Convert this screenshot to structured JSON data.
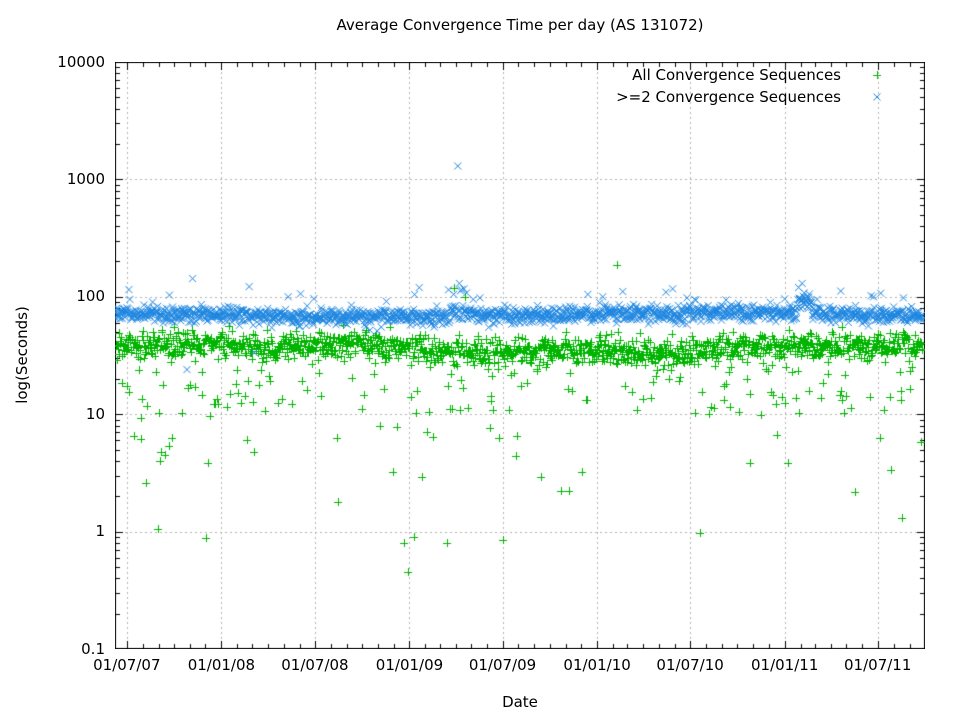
{
  "title": "Average Convergence Time per day (AS 131072)",
  "axes": {
    "x": {
      "label": "Date",
      "range": [
        "2007-06-08",
        "2011-10-01"
      ],
      "ticks": [
        {
          "label": "01/07/07",
          "date": "2007-07-01"
        },
        {
          "label": "01/01/08",
          "date": "2008-01-01"
        },
        {
          "label": "01/07/08",
          "date": "2008-07-01"
        },
        {
          "label": "01/01/09",
          "date": "2009-01-01"
        },
        {
          "label": "01/07/09",
          "date": "2009-07-01"
        },
        {
          "label": "01/01/10",
          "date": "2010-01-01"
        },
        {
          "label": "01/07/10",
          "date": "2010-07-01"
        },
        {
          "label": "01/01/11",
          "date": "2011-01-01"
        },
        {
          "label": "01/07/11",
          "date": "2011-07-01"
        }
      ]
    },
    "y": {
      "label": "log(Seconds)",
      "scale": "log",
      "range": [
        0.1,
        10000
      ],
      "ticks": [
        {
          "label": "10000",
          "value": 10000
        },
        {
          "label": "1000",
          "value": 1000
        },
        {
          "label": "100",
          "value": 100
        },
        {
          "label": "10",
          "value": 10
        },
        {
          "label": "1",
          "value": 1
        },
        {
          "label": "0.1",
          "value": 0.1
        }
      ]
    }
  },
  "legend": {
    "position": "top-right",
    "items": [
      {
        "label": "All Convergence Sequences",
        "marker": "plus-icon",
        "color": "#00b400"
      },
      {
        "label": ">=2 Convergence Sequences",
        "marker": "cross-icon",
        "color": "#1e86e0"
      }
    ]
  },
  "colors": {
    "background": "#ffffff",
    "border": "#000000",
    "grid": "#b4b4b4",
    "text": "#000000",
    "series_all": "#00b400",
    "series_ge2": "#1e86e0"
  },
  "chart_data": {
    "type": "scatter",
    "title": "Average Convergence Time per day (AS 131072)",
    "xlabel": "Date",
    "ylabel": "log(Seconds)",
    "x_unit": "date, one point per day",
    "y_unit": "seconds (log10 scale)",
    "ylim": [
      0.1,
      10000
    ],
    "data_range": [
      "2007-06-10",
      "2011-09-26"
    ],
    "grid": true,
    "seed": 1131072,
    "series": [
      {
        "name": "All Convergence Sequences",
        "marker": "plus",
        "color": "#00b400",
        "typical_seconds": 36,
        "band_seconds": [
          25,
          50
        ],
        "distribution": {
          "core": {
            "log_mean": 1.56,
            "log_sd": 0.06
          },
          "drift": [
            {
              "amp": 0.03,
              "period_days": 230,
              "phase": 0.8
            },
            {
              "amp": 0.015,
              "period_days": 61,
              "phase": 0.0
            }
          ],
          "tails": [
            {
              "name": "very_low",
              "p": 0.006,
              "log_min": -0.35,
              "log_max": 0.4,
              "after_2010_factor": 0.5
            },
            {
              "name": "low",
              "p": 0.03,
              "log_min": 0.45,
              "log_max": 1.0,
              "after_2010_factor": 0.5
            },
            {
              "name": "mid",
              "p": 0.085,
              "log_min": 1.0,
              "log_max": 1.4,
              "after_2010_factor": 1
            },
            {
              "name": "high",
              "p": 0.003,
              "log_min": 1.8,
              "log_max": 1.9,
              "after_2010_factor": 1
            }
          ],
          "events": []
        },
        "outliers": [
          [
            "2010-02-08",
            185
          ],
          [
            "2009-03-29",
            118
          ],
          [
            "2009-04-19",
            100
          ],
          [
            "2008-12-21",
            0.8
          ],
          [
            "2008-12-29",
            0.45
          ],
          [
            "2009-01-10",
            0.9
          ],
          [
            "2009-07-01",
            0.85
          ],
          [
            "2008-08-15",
            1.8
          ],
          [
            "2007-08-07",
            2.6
          ],
          [
            "2007-07-15",
            6.5
          ],
          [
            "2008-02-20",
            6.0
          ],
          [
            "2008-03-05",
            4.8
          ]
        ]
      },
      {
        "name": ">=2 Convergence Sequences",
        "marker": "cross",
        "color": "#1e86e0",
        "typical_seconds": 70,
        "band_seconds": [
          55,
          90
        ],
        "distribution": {
          "core": {
            "log_mean": 1.845,
            "log_sd": 0.036
          },
          "drift": [
            {
              "amp": 0.018,
              "period_days": 200,
              "phase": 2.0
            }
          ],
          "tails": [
            {
              "name": "high",
              "p": 0.016,
              "log_min": 1.95,
              "log_max": 2.09,
              "after_2010_factor": 1
            },
            {
              "name": "low",
              "p": 0.0015,
              "log_min": 1.5,
              "log_max": 1.7,
              "after_2010_factor": 1
            }
          ],
          "events": [
            {
              "start": "2011-01-26",
              "end": "2011-02-22",
              "log_boost": 0.1
            },
            {
              "start": "2009-03-20",
              "end": "2009-05-20",
              "log_boost": 0.03
            }
          ]
        },
        "outliers": [
          [
            "2009-04-05",
            1300
          ],
          [
            "2007-11-06",
            143
          ],
          [
            "2007-10-26",
            24
          ],
          [
            "2009-03-28",
            105
          ],
          [
            "2009-04-08",
            130
          ],
          [
            "2009-04-12",
            115
          ],
          [
            "2009-04-22",
            108
          ],
          [
            "2009-05-05",
            95
          ],
          [
            "2009-05-18",
            98
          ],
          [
            "2011-01-28",
            120
          ],
          [
            "2011-02-04",
            130
          ],
          [
            "2011-02-08",
            108
          ],
          [
            "2011-02-15",
            98
          ],
          [
            "2011-03-05",
            95
          ],
          [
            "2011-06-18",
            102
          ],
          [
            "2010-01-12",
            100
          ],
          [
            "2010-06-25",
            98
          ],
          [
            "2008-05-10",
            100
          ],
          [
            "2011-08-20",
            98
          ]
        ]
      }
    ]
  }
}
